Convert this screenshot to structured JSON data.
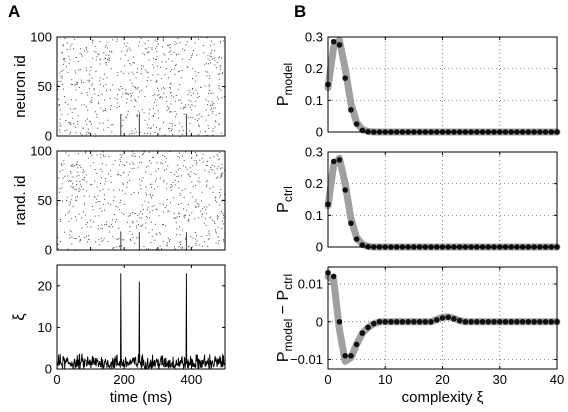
{
  "panel_labels": [
    "A",
    "B"
  ],
  "chart_data": [
    {
      "type": "scatter",
      "panel": "A",
      "plot": "raster",
      "ylabel": "neuron id",
      "xlim": [
        0,
        500
      ],
      "ylim": [
        0,
        100
      ],
      "yticks": [
        0,
        50,
        100
      ],
      "xticks": [
        0,
        100,
        200,
        300,
        400
      ],
      "xticks_labeled": false,
      "synchronous_events_ms": [
        190,
        245,
        385
      ],
      "description_of_points": "random sparse spike raster, ~20 neurons co-fire at the event times"
    },
    {
      "type": "scatter",
      "panel": "A",
      "plot": "raster",
      "ylabel": "rand. id",
      "xlim": [
        0,
        500
      ],
      "ylim": [
        0,
        100
      ],
      "yticks": [
        0,
        50,
        100
      ],
      "xticks": [
        0,
        100,
        200,
        300,
        400
      ],
      "xticks_labeled": false,
      "synchronous_events_ms": [
        190,
        245,
        385
      ]
    },
    {
      "type": "line",
      "panel": "A",
      "ylabel": "ξ",
      "xlabel": "time (ms)",
      "xlim": [
        0,
        500
      ],
      "ylim": [
        0,
        25
      ],
      "yticks": [
        0,
        10,
        20
      ],
      "xticks": [
        0,
        200,
        400
      ],
      "baseline_range": [
        0,
        4
      ],
      "spikes": [
        {
          "t": 190,
          "value": 23
        },
        {
          "t": 245,
          "value": 21
        },
        {
          "t": 385,
          "value": 23
        }
      ]
    },
    {
      "type": "line",
      "panel": "B",
      "ylabel": "P_model",
      "ylabel_main": "P",
      "ylabel_sub": "model",
      "xlim": [
        0,
        40
      ],
      "ylim": [
        0,
        0.3
      ],
      "yticks": [
        0,
        0.1,
        0.2,
        0.3
      ],
      "xticks": [
        0,
        10,
        20,
        30,
        40
      ],
      "xticks_labeled": false,
      "grid": true,
      "x": [
        0,
        1,
        2,
        3,
        4,
        5,
        6,
        7,
        8,
        9,
        10,
        11,
        12,
        13,
        14,
        15,
        16,
        17,
        18,
        19,
        20,
        21,
        22,
        23,
        24,
        25,
        26,
        27,
        28,
        29,
        30,
        31,
        32,
        33,
        34,
        35,
        36,
        37,
        38,
        39,
        40
      ],
      "series": [
        {
          "style": "dots",
          "values": [
            0.15,
            0.285,
            0.275,
            0.17,
            0.07,
            0.025,
            0.005,
            0.001,
            0,
            0,
            0,
            0,
            0,
            0,
            0,
            0,
            0,
            0,
            0,
            0,
            0,
            0,
            0,
            0,
            0,
            0,
            0,
            0,
            0,
            0,
            0,
            0,
            0,
            0,
            0,
            0,
            0,
            0,
            0,
            0,
            0
          ]
        },
        {
          "style": "thick-gray",
          "values": [
            0.14,
            0.27,
            0.29,
            0.2,
            0.09,
            0.03,
            0.008,
            0.002,
            0,
            0,
            0,
            0,
            0,
            0,
            0,
            0,
            0,
            0,
            0,
            0,
            0,
            0,
            0,
            0,
            0,
            0,
            0,
            0,
            0,
            0,
            0,
            0,
            0,
            0,
            0,
            0,
            0,
            0,
            0,
            0,
            0
          ]
        }
      ]
    },
    {
      "type": "line",
      "panel": "B",
      "ylabel": "P_ctrl",
      "ylabel_main": "P",
      "ylabel_sub": "ctrl",
      "xlim": [
        0,
        40
      ],
      "ylim": [
        0,
        0.3
      ],
      "yticks": [
        0,
        0.1,
        0.2,
        0.3
      ],
      "xticks": [
        0,
        10,
        20,
        30,
        40
      ],
      "xticks_labeled": false,
      "grid": true,
      "x": [
        0,
        1,
        2,
        3,
        4,
        5,
        6,
        7,
        8,
        9,
        10,
        11,
        12,
        13,
        14,
        15,
        16,
        17,
        18,
        19,
        20,
        21,
        22,
        23,
        24,
        25,
        26,
        27,
        28,
        29,
        30,
        31,
        32,
        33,
        34,
        35,
        36,
        37,
        38,
        39,
        40
      ],
      "series": [
        {
          "style": "dots",
          "values": [
            0.135,
            0.27,
            0.275,
            0.18,
            0.075,
            0.025,
            0.006,
            0.001,
            0,
            0,
            0,
            0,
            0,
            0,
            0,
            0,
            0,
            0,
            0,
            0,
            0,
            0,
            0,
            0,
            0,
            0,
            0,
            0,
            0,
            0,
            0,
            0,
            0,
            0,
            0,
            0,
            0,
            0,
            0,
            0,
            0
          ]
        },
        {
          "style": "thick-gray",
          "values": [
            0.13,
            0.26,
            0.28,
            0.2,
            0.09,
            0.03,
            0.008,
            0.002,
            0,
            0,
            0,
            0,
            0,
            0,
            0,
            0,
            0,
            0,
            0,
            0,
            0,
            0,
            0,
            0,
            0,
            0,
            0,
            0,
            0,
            0,
            0,
            0,
            0,
            0,
            0,
            0,
            0,
            0,
            0,
            0,
            0
          ]
        }
      ]
    },
    {
      "type": "line",
      "panel": "B",
      "ylabel": "P_model − P_ctrl",
      "ylabel_parts": [
        "P",
        "model",
        " − P",
        "ctrl"
      ],
      "xlabel": "complexity ξ",
      "xlim": [
        0,
        40
      ],
      "ylim": [
        -0.0125,
        0.0145
      ],
      "yticks": [
        -0.01,
        0,
        0.01
      ],
      "xticks": [
        0,
        10,
        20,
        30,
        40
      ],
      "grid": true,
      "x": [
        0,
        1,
        2,
        3,
        4,
        5,
        6,
        7,
        8,
        9,
        10,
        11,
        12,
        13,
        14,
        15,
        16,
        17,
        18,
        19,
        20,
        21,
        22,
        23,
        24,
        25,
        26,
        27,
        28,
        29,
        30,
        31,
        32,
        33,
        34,
        35,
        36,
        37,
        38,
        39,
        40
      ],
      "series": [
        {
          "style": "dots",
          "values": [
            0.013,
            0.012,
            0.0,
            -0.009,
            -0.009,
            -0.006,
            -0.003,
            -0.0015,
            -0.0005,
            0,
            0,
            0,
            0,
            0,
            0,
            0,
            0,
            0,
            0,
            0.0005,
            0.001,
            0.0012,
            0.0008,
            0.0003,
            0,
            0,
            0,
            0,
            0,
            0,
            0,
            0,
            0,
            0,
            0,
            0,
            0,
            0,
            0,
            0,
            0
          ]
        },
        {
          "style": "thick-gray",
          "values": [
            0.012,
            0.011,
            -0.002,
            -0.0105,
            -0.0095,
            -0.006,
            -0.003,
            -0.0015,
            -0.0005,
            0,
            0,
            0,
            0,
            0,
            0,
            0,
            0,
            0,
            0,
            0.0006,
            0.0012,
            0.0013,
            0.0009,
            0.0003,
            0,
            0,
            0,
            0,
            0,
            0,
            0,
            0,
            0,
            0,
            0,
            0,
            0,
            0,
            0,
            0,
            0
          ]
        }
      ]
    }
  ]
}
